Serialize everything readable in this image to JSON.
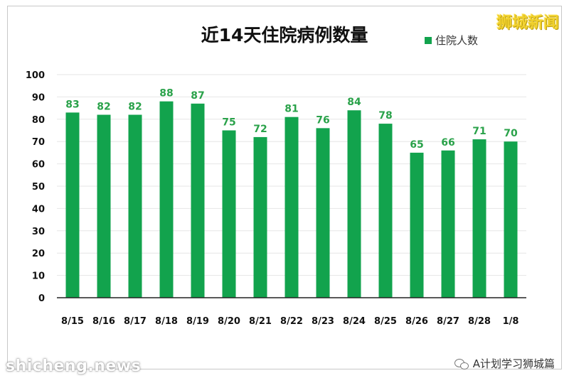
{
  "brand": {
    "logo_text": "狮城新闻",
    "logo_color": "#f2d22e"
  },
  "watermark": {
    "text": "shicheng.news"
  },
  "wechat": {
    "icon": "wechat-icon",
    "account": "A计划学习狮城篇"
  },
  "chart_data": {
    "type": "bar",
    "title": "近14天住院病例数量",
    "xlabel": "",
    "ylabel": "",
    "categories": [
      "8/15",
      "8/16",
      "8/17",
      "8/18",
      "8/19",
      "8/20",
      "8/21",
      "8/22",
      "8/23",
      "8/24",
      "8/25",
      "8/26",
      "8/27",
      "8/28",
      "1/8"
    ],
    "series": [
      {
        "name": "住院人数",
        "values": [
          83,
          82,
          82,
          88,
          87,
          75,
          72,
          81,
          76,
          84,
          78,
          65,
          66,
          71,
          70
        ],
        "color": "#12a34d"
      }
    ],
    "data_labels": [
      "83",
      "82",
      "82",
      "88",
      "87",
      "75",
      "72",
      "81",
      "76",
      "84",
      "78",
      "65",
      "66",
      "71",
      "70"
    ],
    "label_color": "#2aa24a",
    "ylim": [
      0,
      100
    ],
    "yticks": [
      0,
      10,
      20,
      30,
      40,
      50,
      60,
      70,
      80,
      90,
      100
    ],
    "grid": true,
    "legend_position": "top-right"
  }
}
